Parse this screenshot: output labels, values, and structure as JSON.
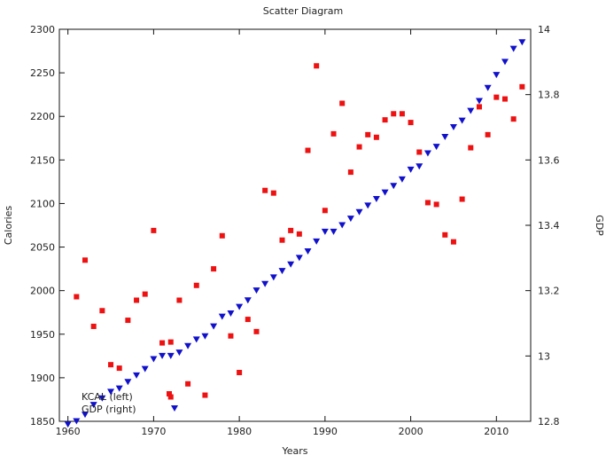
{
  "chart_data": {
    "type": "scatter",
    "title": "Scatter Diagram",
    "xlabel": "Years",
    "ylabel_left": "Calories",
    "ylabel_right": "GDP",
    "xlim": [
      1959,
      2014
    ],
    "ylim_left": [
      1850,
      2300
    ],
    "ylim_right": [
      12.8,
      14
    ],
    "xticks": [
      1960,
      1970,
      1980,
      1990,
      2000,
      2010
    ],
    "yticks_left": [
      1850,
      1900,
      1950,
      2000,
      2050,
      2100,
      2150,
      2200,
      2250,
      2300
    ],
    "yticks_right": [
      12.8,
      13,
      13.2,
      13.4,
      13.6,
      13.8,
      14
    ],
    "ytick_labels_right": [
      "12.8",
      "13",
      "13.2",
      "13.4",
      "13.6",
      "13.8",
      "14"
    ],
    "legend_position": "bottom-left",
    "series": [
      {
        "name": "KCAL  (left)",
        "axis": "left",
        "marker": "square",
        "color": "#ee1111",
        "points": [
          [
            1961,
            1993
          ],
          [
            1962,
            2035
          ],
          [
            1963,
            1959
          ],
          [
            1964,
            1977
          ],
          [
            1965,
            1915
          ],
          [
            1966,
            1911
          ],
          [
            1967,
            1966
          ],
          [
            1968,
            1989
          ],
          [
            1969,
            1996
          ],
          [
            1970,
            2069
          ],
          [
            1971,
            1940
          ],
          [
            1972,
            1941
          ],
          [
            1972,
            1878
          ],
          [
            1973,
            1989
          ],
          [
            1974,
            1893
          ],
          [
            1975,
            2006
          ],
          [
            1976,
            1880
          ],
          [
            1977,
            2025
          ],
          [
            1978,
            2063
          ],
          [
            1979,
            1948
          ],
          [
            1980,
            1906
          ],
          [
            1981,
            1967
          ],
          [
            1982,
            1953
          ],
          [
            1983,
            2115
          ],
          [
            1984,
            2112
          ],
          [
            1985,
            2058
          ],
          [
            1986,
            2069
          ],
          [
            1987,
            2065
          ],
          [
            1988,
            2161
          ],
          [
            1989,
            2258
          ],
          [
            1990,
            2092
          ],
          [
            1991,
            2180
          ],
          [
            1992,
            2215
          ],
          [
            1993,
            2136
          ],
          [
            1994,
            2165
          ],
          [
            1995,
            2179
          ],
          [
            1996,
            2176
          ],
          [
            1997,
            2196
          ],
          [
            1998,
            2203
          ],
          [
            1999,
            2203
          ],
          [
            2000,
            2193
          ],
          [
            2001,
            2159
          ],
          [
            2002,
            2101
          ],
          [
            2003,
            2099
          ],
          [
            2004,
            2064
          ],
          [
            2005,
            2056
          ],
          [
            2006,
            2105
          ],
          [
            2007,
            2164
          ],
          [
            2008,
            2211
          ],
          [
            2009,
            2179
          ],
          [
            2010,
            2222
          ],
          [
            2011,
            2220
          ],
          [
            2012,
            2197
          ],
          [
            2013,
            2234
          ]
        ]
      },
      {
        "name": "GDP  (right)",
        "axis": "right",
        "marker": "triangle-down",
        "color": "#1111cc",
        "points": [
          [
            1960,
            12.79
          ],
          [
            1961,
            12.8
          ],
          [
            1962,
            12.82
          ],
          [
            1963,
            12.85
          ],
          [
            1964,
            12.87
          ],
          [
            1965,
            12.89
          ],
          [
            1966,
            12.9
          ],
          [
            1967,
            12.92
          ],
          [
            1968,
            12.94
          ],
          [
            1969,
            12.96
          ],
          [
            1970,
            12.99
          ],
          [
            1971,
            13.0
          ],
          [
            1972,
            13.0
          ],
          [
            1973,
            13.01
          ],
          [
            1974,
            13.03
          ],
          [
            1975,
            13.05
          ],
          [
            1976,
            13.06
          ],
          [
            1977,
            13.09
          ],
          [
            1978,
            13.12
          ],
          [
            1979,
            13.13
          ],
          [
            1980,
            13.15
          ],
          [
            1981,
            13.17
          ],
          [
            1982,
            13.2
          ],
          [
            1983,
            13.22
          ],
          [
            1984,
            13.24
          ],
          [
            1985,
            13.26
          ],
          [
            1986,
            13.28
          ],
          [
            1987,
            13.3
          ],
          [
            1988,
            13.32
          ],
          [
            1989,
            13.35
          ],
          [
            1990,
            13.38
          ],
          [
            1991,
            13.38
          ],
          [
            1992,
            13.4
          ],
          [
            1993,
            13.42
          ],
          [
            1994,
            13.44
          ],
          [
            1995,
            13.46
          ],
          [
            1996,
            13.48
          ],
          [
            1997,
            13.5
          ],
          [
            1998,
            13.52
          ],
          [
            1999,
            13.54
          ],
          [
            2000,
            13.57
          ],
          [
            2001,
            13.58
          ],
          [
            2002,
            13.62
          ],
          [
            2003,
            13.64
          ],
          [
            2004,
            13.67
          ],
          [
            2005,
            13.7
          ],
          [
            2006,
            13.72
          ],
          [
            2007,
            13.75
          ],
          [
            2008,
            13.78
          ],
          [
            2009,
            13.82
          ],
          [
            2010,
            13.86
          ],
          [
            2011,
            13.9
          ],
          [
            2012,
            13.94
          ],
          [
            2013,
            13.96
          ]
        ]
      }
    ]
  }
}
